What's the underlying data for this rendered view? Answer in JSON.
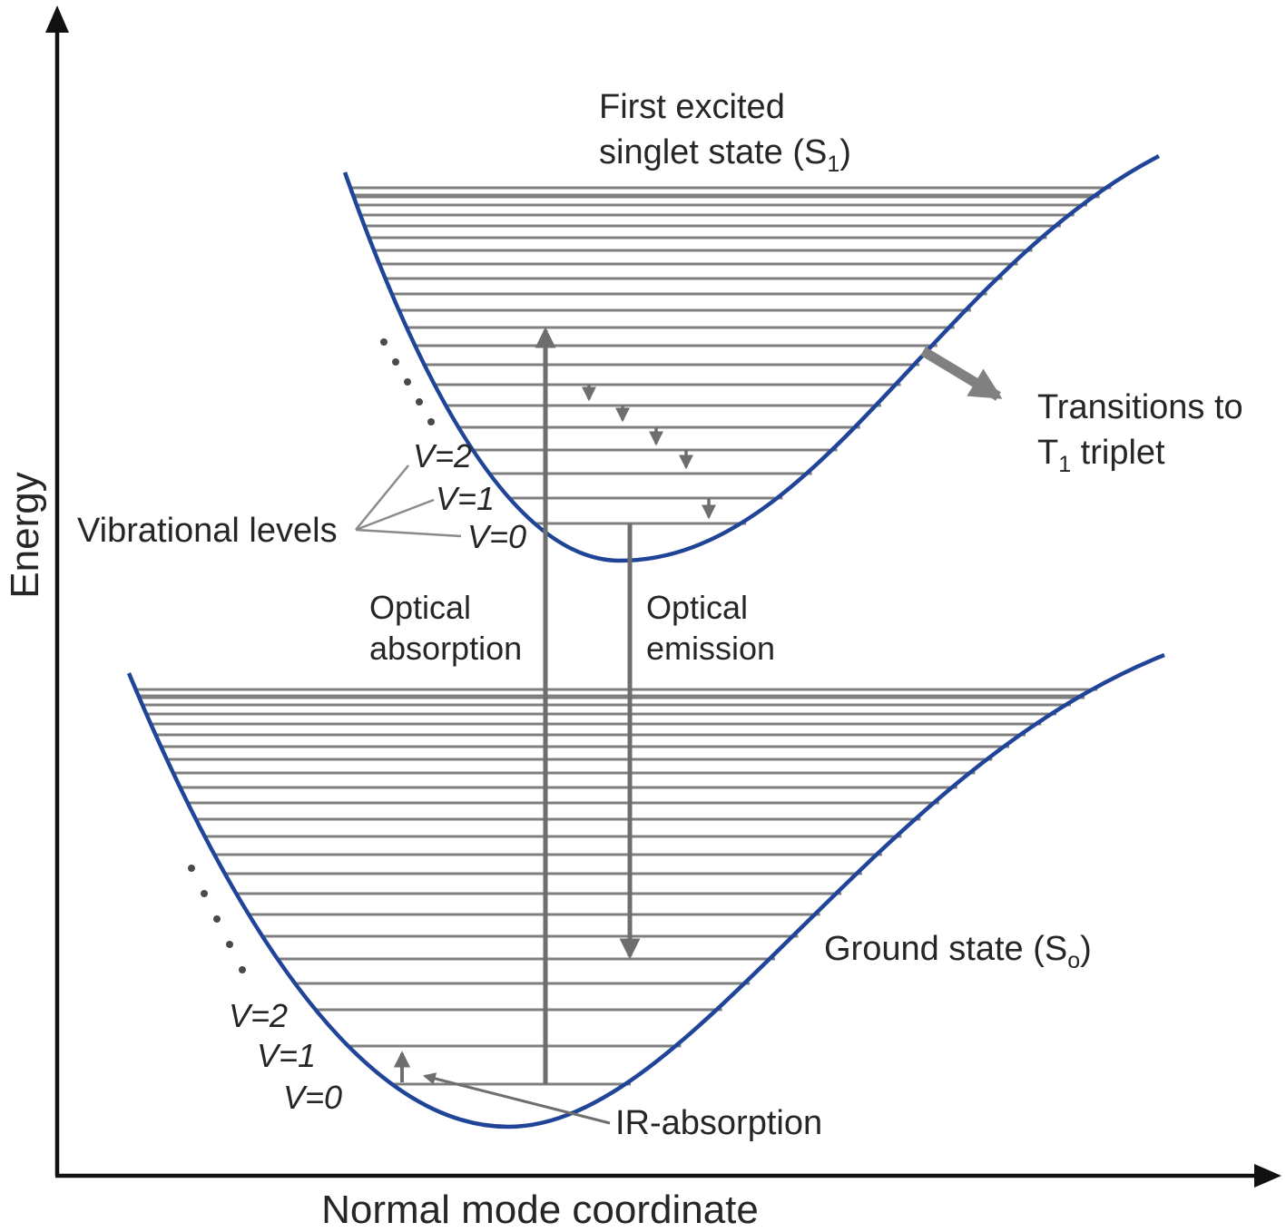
{
  "diagram": {
    "y_axis_label": "Energy",
    "x_axis_label": "Normal mode coordinate",
    "s1_title": {
      "line1": "First excited",
      "line2_prefix": "singlet state (S",
      "sub": "1",
      "suffix": ")"
    },
    "transitions": {
      "line1": "Transitions to",
      "t": "T",
      "sub": "1",
      "rest": " triplet"
    },
    "ground_state": {
      "prefix": "Ground state (S",
      "sub": "o",
      "suffix": ")"
    },
    "vibrational_levels_label": "Vibrational levels",
    "optical_absorption": {
      "line1": "Optical",
      "line2": "absorption"
    },
    "optical_emission": {
      "line1": "Optical",
      "line2": "emission"
    },
    "ir_absorption_label": "IR-absorption",
    "s1_v_labels": [
      "V=2",
      "V=1",
      "V=0"
    ],
    "s0_v_labels": [
      "V=2",
      "V=1",
      "V=0"
    ],
    "colors": {
      "curve": "#1f4498",
      "level": "#7f7f7f",
      "arrow": "#6e6e6e",
      "thick_arrow": "#808080",
      "axis": "#111111",
      "text": "#262626"
    }
  }
}
